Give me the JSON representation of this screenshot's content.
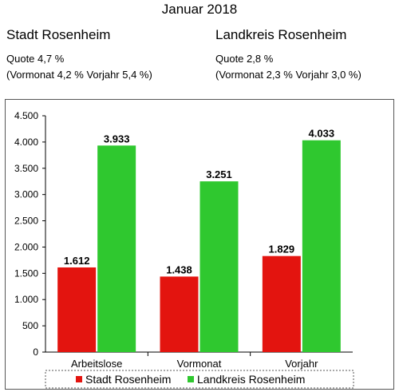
{
  "title": "Januar 2018",
  "left": {
    "name": "Stadt Rosenheim",
    "quote": "Quote 4,7 %",
    "prev": "(Vormonat 4,2 % Vorjahr  5,4 %)"
  },
  "right": {
    "name": "Landkreis Rosenheim",
    "quote": "Quote 2,8 %",
    "prev": "(Vormonat 2,3 % Vorjahr 3,0 %)"
  },
  "chart_data": {
    "type": "bar",
    "categories": [
      "Arbeitslose",
      "Vormonat",
      "Vorjahr"
    ],
    "series": [
      {
        "name": "Stadt Rosenheim",
        "values": [
          1612,
          1438,
          1829
        ],
        "labels": [
          "1.612",
          "1.438",
          "1.829"
        ],
        "color": "#e3140f"
      },
      {
        "name": "Landkreis Rosenheim",
        "values": [
          3933,
          3251,
          4033
        ],
        "labels": [
          "3.933",
          "3.251",
          "4.033"
        ],
        "color": "#2fc82f"
      }
    ],
    "ylim": [
      0,
      4500
    ],
    "yticks": [
      0,
      500,
      1000,
      1500,
      2000,
      2500,
      3000,
      3500,
      4000,
      4500
    ],
    "ytick_labels": [
      "0",
      "500",
      "1.000",
      "1.500",
      "2.000",
      "2.500",
      "3.000",
      "3.500",
      "4.000",
      "4.500"
    ],
    "grid": false,
    "legend_position": "bottom"
  }
}
